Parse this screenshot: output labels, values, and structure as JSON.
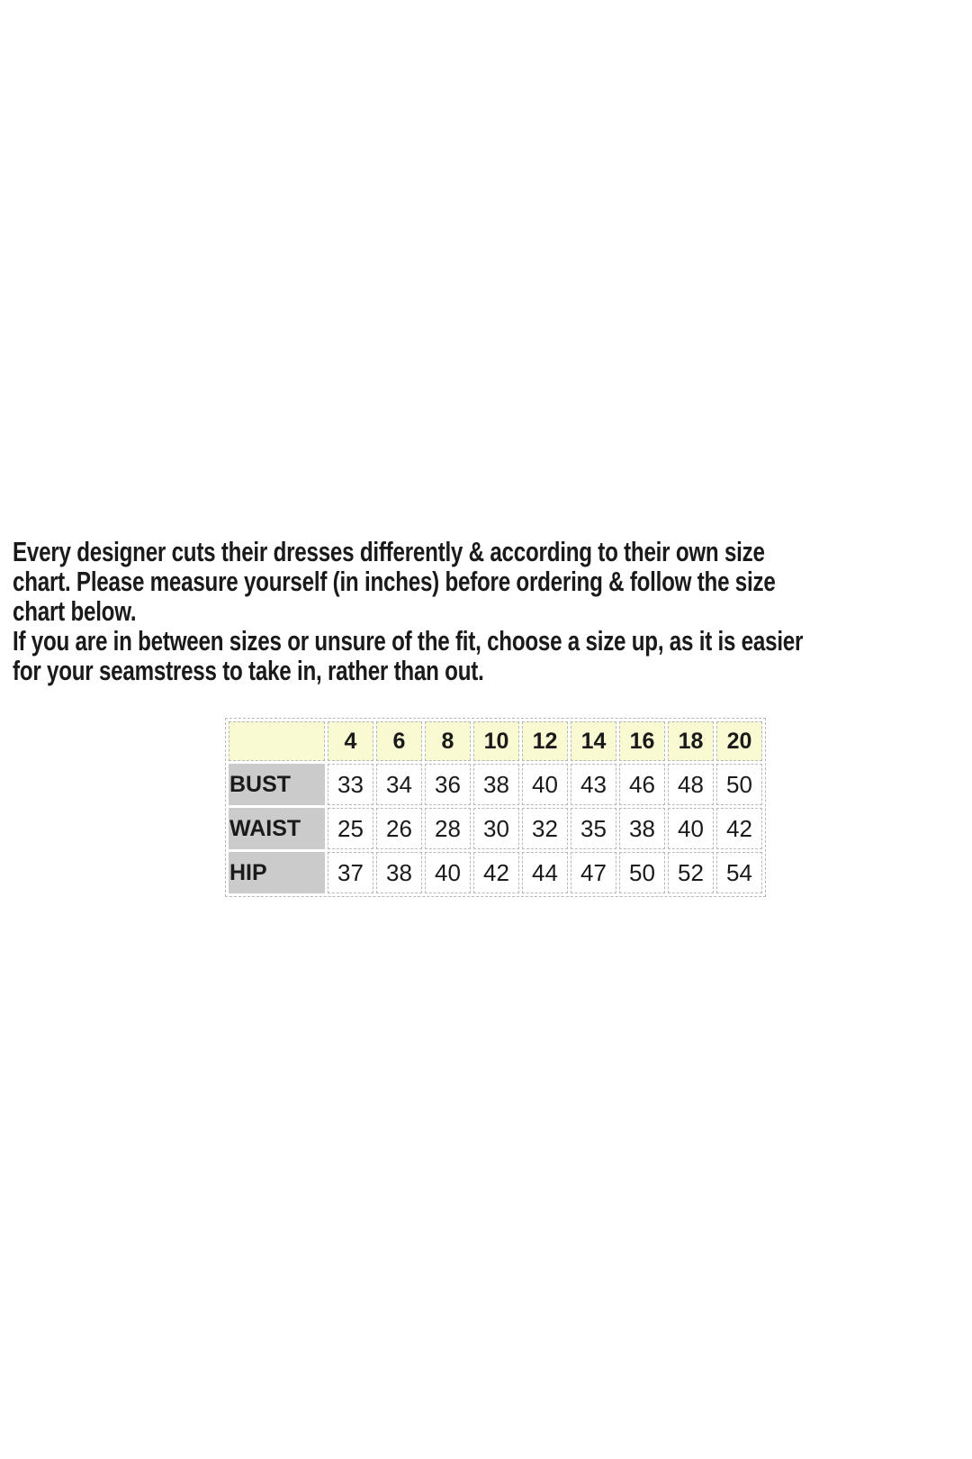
{
  "intro": {
    "lines": [
      "Every designer cuts their dresses differently & according to their own size",
      "chart. Please measure yourself (in inches) before ordering & follow the size",
      "chart below.",
      "If you are in between sizes or unsure of the fit, choose a size up, as it is easier",
      "for your seamstress to take in, rather than out."
    ]
  },
  "chart_data": {
    "type": "table",
    "columns": [
      "4",
      "6",
      "8",
      "10",
      "12",
      "14",
      "16",
      "18",
      "20"
    ],
    "rows": [
      {
        "label": "BUST",
        "values": [
          33,
          34,
          36,
          38,
          40,
          43,
          46,
          48,
          50
        ]
      },
      {
        "label": "WAIST",
        "values": [
          25,
          26,
          28,
          30,
          32,
          35,
          38,
          40,
          42
        ]
      },
      {
        "label": "HIP",
        "values": [
          37,
          38,
          40,
          42,
          44,
          47,
          50,
          52,
          54
        ]
      }
    ]
  },
  "colors": {
    "page_bg": "#FFFFFF",
    "header_bg": "#FAFAD2",
    "label_bg": "#CBCBCB",
    "border": "#B8B8B8",
    "text": "#1A1A1A"
  }
}
